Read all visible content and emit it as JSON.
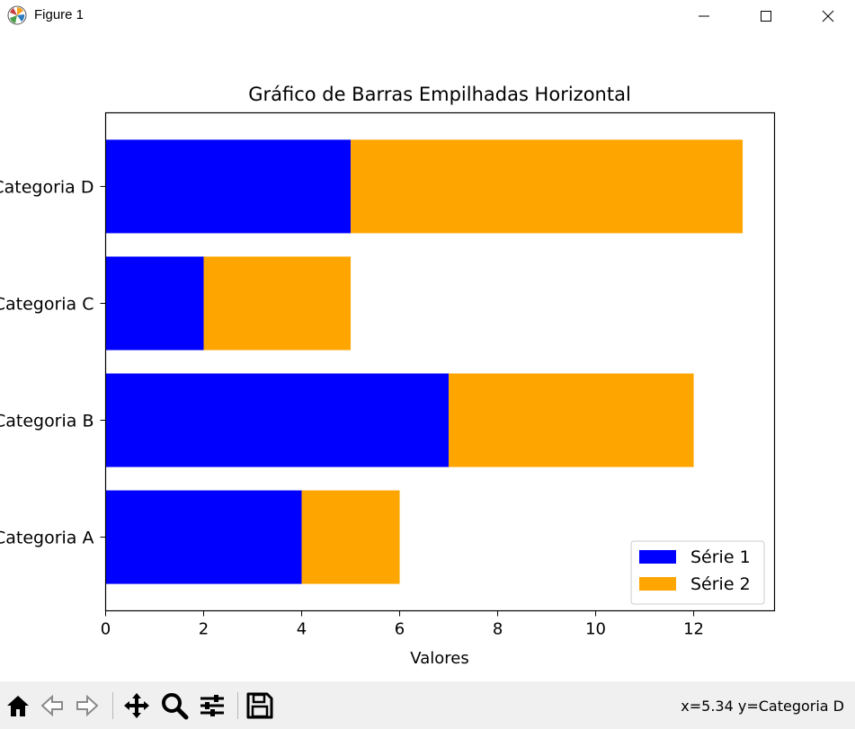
{
  "window": {
    "title": "Figure 1"
  },
  "chart_data": {
    "type": "bar",
    "orientation": "horizontal",
    "stacked": true,
    "title": "Gráfico de Barras Empilhadas Horizontal",
    "xlabel": "Valores",
    "ylabel": "",
    "categories": [
      "Categoria A",
      "Categoria B",
      "Categoria C",
      "Categoria D"
    ],
    "series": [
      {
        "name": "Série 1",
        "values": [
          4,
          7,
          2,
          5
        ],
        "color": "#0000ff"
      },
      {
        "name": "Série 2",
        "values": [
          2,
          5,
          3,
          8
        ],
        "color": "#ffa500"
      }
    ],
    "xlim": [
      0,
      13.65
    ],
    "xticks": [
      0,
      2,
      4,
      6,
      8,
      10,
      12
    ],
    "grid": false,
    "legend_position": "lower-right"
  },
  "toolbar": {
    "icons": [
      "home-icon",
      "back-icon",
      "forward-icon",
      "pan-icon",
      "zoom-icon",
      "configure-subplots-icon",
      "save-icon"
    ],
    "status": "x=5.34 y=Categoria D"
  }
}
